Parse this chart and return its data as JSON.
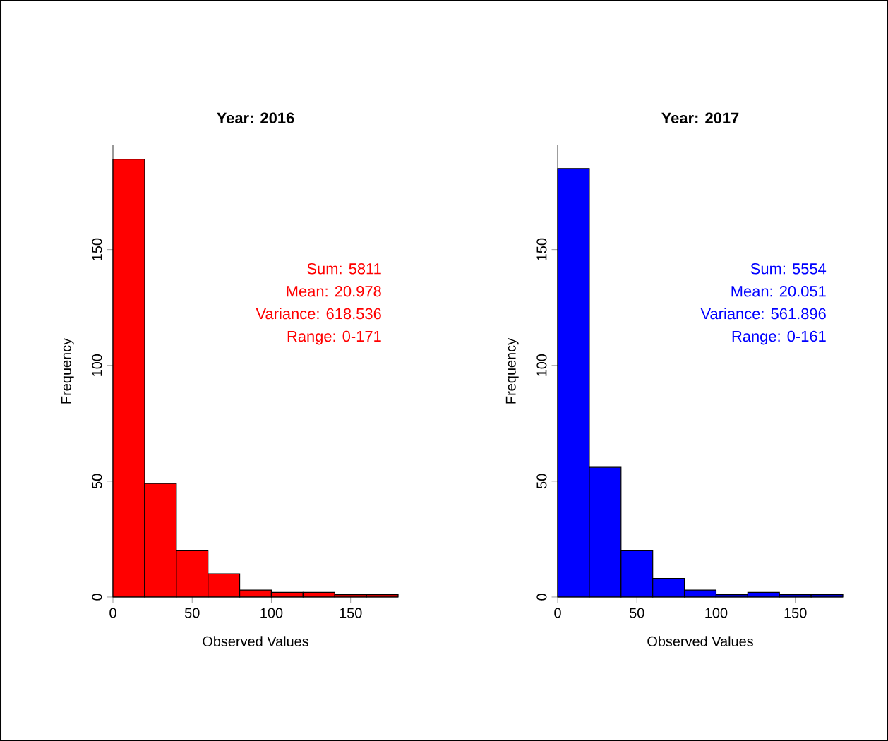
{
  "chart_data": [
    {
      "type": "histogram",
      "title": "Year: 2016",
      "xlabel": "Observed Values",
      "ylabel": "Frequency",
      "bins": [
        0,
        20,
        40,
        60,
        80,
        100,
        120,
        140,
        160,
        180
      ],
      "values": [
        189,
        49,
        20,
        10,
        3,
        2,
        2,
        1,
        1
      ],
      "color": "#ff0000",
      "xlim": [
        0,
        180
      ],
      "ylim": [
        0,
        195
      ],
      "xticks": [
        0,
        50,
        100,
        150
      ],
      "yticks": [
        0,
        50,
        100,
        150
      ],
      "grid": false,
      "annotations": [
        "Sum: 5811",
        "Mean: 20.978",
        "Variance: 618.536",
        "Range: 0-171"
      ]
    },
    {
      "type": "histogram",
      "title": "Year: 2017",
      "xlabel": "Observed Values",
      "ylabel": "Frequency",
      "bins": [
        0,
        20,
        40,
        60,
        80,
        100,
        120,
        140,
        160,
        180
      ],
      "values": [
        185,
        56,
        20,
        8,
        3,
        1,
        2,
        1,
        1
      ],
      "color": "#0000ff",
      "xlim": [
        0,
        180
      ],
      "ylim": [
        0,
        195
      ],
      "xticks": [
        0,
        50,
        100,
        150
      ],
      "yticks": [
        0,
        50,
        100,
        150
      ],
      "grid": false,
      "annotations": [
        "Sum: 5554",
        "Mean: 20.051",
        "Variance: 561.896",
        "Range: 0-161"
      ]
    }
  ]
}
